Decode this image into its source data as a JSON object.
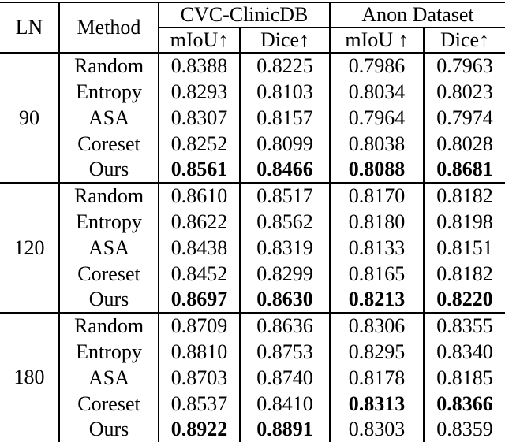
{
  "colors": {
    "text": "#000000",
    "background": "#ffffff",
    "rule": "#000000"
  },
  "header": {
    "ln": "LN",
    "method": "Method",
    "dataset1": "CVC-ClinicDB",
    "dataset2": "Anon Dataset",
    "subs": [
      "mIoU↑",
      "Dice↑",
      "mIoU ↑",
      "Dice↑"
    ]
  },
  "groups": [
    {
      "ln": "90",
      "rows": [
        {
          "method": "Random",
          "values": [
            "0.8388",
            "0.8225",
            "0.7986",
            "0.7963"
          ],
          "bold": [
            false,
            false,
            false,
            false
          ]
        },
        {
          "method": "Entropy",
          "values": [
            "0.8293",
            "0.8103",
            "0.8034",
            "0.8023"
          ],
          "bold": [
            false,
            false,
            false,
            false
          ]
        },
        {
          "method": "ASA",
          "values": [
            "0.8307",
            "0.8157",
            "0.7964",
            "0.7974"
          ],
          "bold": [
            false,
            false,
            false,
            false
          ]
        },
        {
          "method": "Coreset",
          "values": [
            "0.8252",
            "0.8099",
            "0.8038",
            "0.8028"
          ],
          "bold": [
            false,
            false,
            false,
            false
          ]
        },
        {
          "method": "Ours",
          "values": [
            "0.8561",
            "0.8466",
            "0.8088",
            "0.8681"
          ],
          "bold": [
            true,
            true,
            true,
            true
          ]
        }
      ]
    },
    {
      "ln": "120",
      "rows": [
        {
          "method": "Random",
          "values": [
            "0.8610",
            "0.8517",
            "0.8170",
            "0.8182"
          ],
          "bold": [
            false,
            false,
            false,
            false
          ]
        },
        {
          "method": "Entropy",
          "values": [
            "0.8622",
            "0.8562",
            "0.8180",
            "0.8198"
          ],
          "bold": [
            false,
            false,
            false,
            false
          ]
        },
        {
          "method": "ASA",
          "values": [
            "0.8438",
            "0.8319",
            "0.8133",
            "0.8151"
          ],
          "bold": [
            false,
            false,
            false,
            false
          ]
        },
        {
          "method": "Coreset",
          "values": [
            "0.8452",
            "0.8299",
            "0.8165",
            "0.8182"
          ],
          "bold": [
            false,
            false,
            false,
            false
          ]
        },
        {
          "method": "Ours",
          "values": [
            "0.8697",
            "0.8630",
            "0.8213",
            "0.8220"
          ],
          "bold": [
            true,
            true,
            true,
            true
          ]
        }
      ]
    },
    {
      "ln": "180",
      "rows": [
        {
          "method": "Random",
          "values": [
            "0.8709",
            "0.8636",
            "0.8306",
            "0.8355"
          ],
          "bold": [
            false,
            false,
            false,
            false
          ]
        },
        {
          "method": "Entropy",
          "values": [
            "0.8810",
            "0.8753",
            "0.8295",
            "0.8340"
          ],
          "bold": [
            false,
            false,
            false,
            false
          ]
        },
        {
          "method": "ASA",
          "values": [
            "0.8703",
            "0.8740",
            "0.8178",
            "0.8185"
          ],
          "bold": [
            false,
            false,
            false,
            false
          ]
        },
        {
          "method": "Coreset",
          "values": [
            "0.8537",
            "0.8410",
            "0.8313",
            "0.8366"
          ],
          "bold": [
            false,
            false,
            true,
            true
          ]
        },
        {
          "method": "Ours",
          "values": [
            "0.8922",
            "0.8891",
            "0.8303",
            "0.8359"
          ],
          "bold": [
            true,
            true,
            false,
            false
          ]
        }
      ]
    }
  ]
}
